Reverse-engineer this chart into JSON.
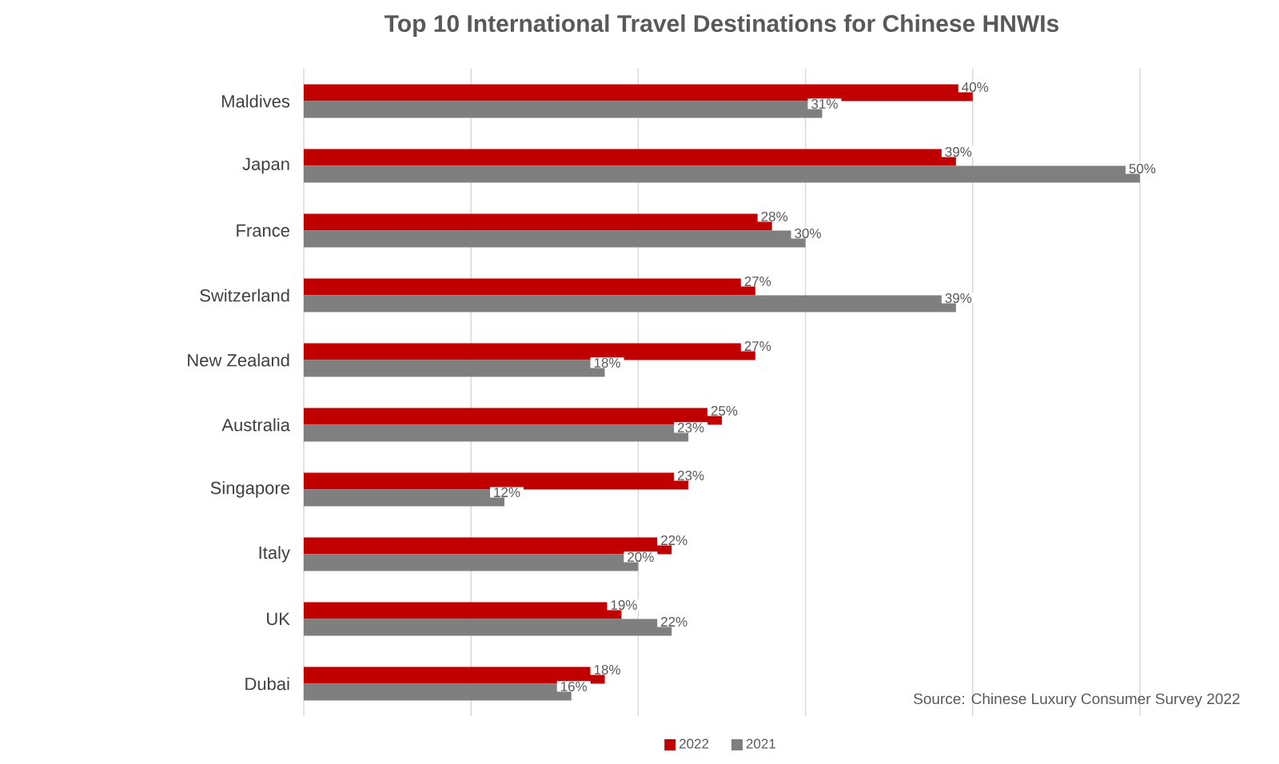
{
  "chart_data": {
    "type": "bar",
    "orientation": "horizontal",
    "title": "Top 10 International Travel Destinations for Chinese HNWIs",
    "categories": [
      "Maldives",
      "Japan",
      "France",
      "Switzerland",
      "New Zealand",
      "Australia",
      "Singapore",
      "Italy",
      "UK",
      "Dubai"
    ],
    "series": [
      {
        "name": "2022",
        "color": "#c00000",
        "values": [
          40,
          39,
          28,
          27,
          27,
          25,
          23,
          22,
          19,
          18
        ],
        "value_labels": [
          "40%",
          "39%",
          "28%",
          "27%",
          "27%",
          "25%",
          "23%",
          "22%",
          "19%",
          "18%"
        ]
      },
      {
        "name": "2021",
        "color": "#7f7f7f",
        "values": [
          31,
          50,
          30,
          39,
          18,
          23,
          12,
          20,
          22,
          16
        ],
        "value_labels": [
          "31%",
          "50%",
          "30%",
          "39%",
          "18%",
          "23%",
          "12%",
          "20%",
          "22%",
          "16%"
        ]
      }
    ],
    "xlim": [
      0,
      50
    ],
    "xticks": [
      {
        "value": 0,
        "label": null
      },
      {
        "value": 10,
        "label": null
      },
      {
        "value": 20,
        "label": null
      },
      {
        "value": 30,
        "label": null
      },
      {
        "value": 40,
        "label": null
      },
      {
        "value": 50,
        "label": null
      }
    ],
    "tick_labels": "y",
    "grid": "x",
    "legend": "bottom",
    "annotations": [
      "Source: Chinese Luxury Consumer Survey 2022"
    ]
  }
}
